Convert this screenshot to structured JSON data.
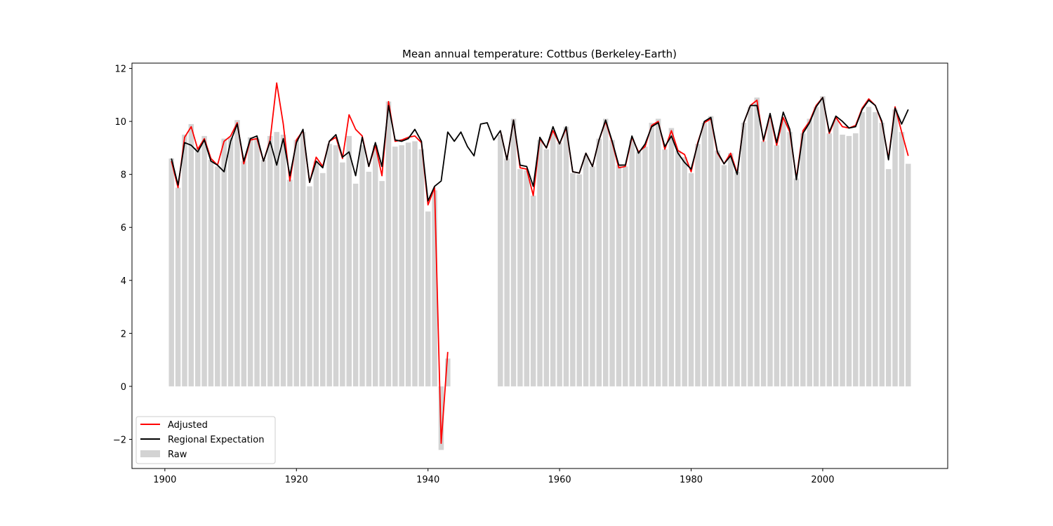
{
  "chart_data": {
    "type": "bar",
    "title": "Mean annual temperature: Cottbus (Berkeley-Earth)",
    "xlabel": "",
    "ylabel": "",
    "xlim": [
      1895,
      2019
    ],
    "ylim": [
      -3.1,
      12.2
    ],
    "xticks": [
      1900,
      1920,
      1940,
      1960,
      1980,
      2000
    ],
    "yticks": [
      -2,
      0,
      2,
      4,
      6,
      8,
      10,
      12
    ],
    "legend": {
      "position": "lower-left",
      "entries": [
        {
          "label": "Adjusted",
          "kind": "line",
          "color": "#ff0000"
        },
        {
          "label": "Regional Expectation",
          "kind": "line",
          "color": "#000000"
        },
        {
          "label": "Raw",
          "kind": "bar",
          "color": "#d3d3d3"
        }
      ]
    },
    "series": [
      {
        "name": "Raw",
        "kind": "bar",
        "color": "#d3d3d3",
        "x": [
          1901,
          1902,
          1903,
          1904,
          1905,
          1906,
          1907,
          1908,
          1909,
          1910,
          1911,
          1912,
          1913,
          1914,
          1915,
          1916,
          1917,
          1918,
          1919,
          1920,
          1921,
          1922,
          1923,
          1924,
          1925,
          1926,
          1927,
          1928,
          1929,
          1930,
          1931,
          1932,
          1933,
          1934,
          1935,
          1936,
          1937,
          1938,
          1939,
          1940,
          1941,
          1942,
          1943,
          1951,
          1952,
          1953,
          1954,
          1955,
          1956,
          1957,
          1958,
          1959,
          1960,
          1961,
          1962,
          1963,
          1964,
          1965,
          1966,
          1967,
          1968,
          1969,
          1970,
          1971,
          1972,
          1973,
          1974,
          1975,
          1976,
          1977,
          1978,
          1979,
          1980,
          1981,
          1982,
          1983,
          1984,
          1985,
          1986,
          1987,
          1988,
          1989,
          1990,
          1991,
          1992,
          1993,
          1994,
          1995,
          1996,
          1997,
          1998,
          1999,
          2000,
          2001,
          2002,
          2003,
          2004,
          2005,
          2006,
          2007,
          2008,
          2009,
          2010,
          2011,
          2012,
          2013
        ],
        "values": [
          8.6,
          7.5,
          9.5,
          9.9,
          9.0,
          9.45,
          8.55,
          8.3,
          9.35,
          9.4,
          10.05,
          8.5,
          9.4,
          9.35,
          8.55,
          9.45,
          9.6,
          9.5,
          7.8,
          9.3,
          9.6,
          7.55,
          8.5,
          8.05,
          9.15,
          9.1,
          8.45,
          9.45,
          7.65,
          9.1,
          8.1,
          9.1,
          7.75,
          10.75,
          9.05,
          9.1,
          9.2,
          9.25,
          8.95,
          6.6,
          7.4,
          -2.4,
          1.05,
          9.5,
          8.6,
          10.1,
          8.2,
          8.15,
          7.2,
          9.3,
          8.95,
          9.55,
          9.2,
          9.8,
          8.05,
          8.0,
          8.7,
          8.3,
          9.35,
          10.1,
          9.3,
          8.35,
          8.3,
          9.3,
          8.85,
          9.05,
          9.95,
          10.1,
          8.95,
          9.75,
          8.9,
          8.65,
          8.05,
          9.15,
          9.95,
          10.2,
          8.9,
          8.35,
          8.8,
          8.1,
          9.95,
          10.55,
          10.9,
          9.25,
          10.05,
          9.1,
          10.05,
          9.6,
          7.85,
          9.55,
          10.1,
          10.55,
          10.95,
          9.55,
          10.05,
          9.5,
          9.45,
          9.55,
          10.35,
          10.55,
          10.35,
          9.95,
          8.2,
          10.45,
          9.6,
          8.4
        ]
      },
      {
        "name": "Adjusted",
        "kind": "line",
        "color": "#ff0000",
        "segments": [
          {
            "x": [
              1901,
              1902,
              1903,
              1904,
              1905,
              1906,
              1907,
              1908,
              1909,
              1910,
              1911,
              1912,
              1913,
              1914,
              1915,
              1916,
              1917,
              1918,
              1919,
              1920,
              1921,
              1922,
              1923,
              1924,
              1925,
              1926,
              1927,
              1928,
              1929,
              1930,
              1931,
              1932,
              1933,
              1934,
              1935,
              1936,
              1937,
              1938,
              1939,
              1940,
              1941,
              1942,
              1943
            ],
            "values": [
              8.5,
              7.5,
              9.4,
              9.8,
              8.95,
              9.35,
              8.6,
              8.35,
              9.25,
              9.45,
              9.95,
              8.4,
              9.3,
              9.35,
              8.5,
              9.3,
              11.45,
              9.9,
              7.75,
              9.3,
              9.65,
              7.7,
              8.65,
              8.3,
              9.25,
              9.4,
              8.6,
              10.25,
              9.7,
              9.45,
              8.3,
              9.1,
              7.95,
              10.75,
              9.25,
              9.3,
              9.4,
              9.45,
              9.2,
              6.85,
              7.5,
              -2.15,
              1.3
            ]
          },
          {
            "x": [
              1951,
              1952,
              1953,
              1954,
              1955,
              1956,
              1957,
              1958,
              1959,
              1960,
              1961,
              1962,
              1963,
              1964,
              1965,
              1966,
              1967,
              1968,
              1969,
              1970,
              1971,
              1972,
              1973,
              1974,
              1975,
              1976,
              1977,
              1978,
              1979,
              1980,
              1981,
              1982,
              1983,
              1984,
              1985,
              1986,
              1987,
              1988,
              1989,
              1990,
              1991,
              1992,
              1993,
              1994,
              1995,
              1996,
              1997,
              1998,
              1999,
              2000,
              2001,
              2002,
              2003,
              2004,
              2005,
              2006,
              2007,
              2008,
              2009,
              2010,
              2011,
              2012,
              2013
            ],
            "values": [
              9.65,
              8.55,
              10.05,
              8.25,
              8.2,
              7.2,
              9.35,
              9.0,
              9.65,
              9.15,
              9.75,
              8.1,
              8.05,
              8.8,
              8.3,
              9.3,
              10.0,
              9.2,
              8.25,
              8.3,
              9.4,
              8.85,
              9.05,
              9.85,
              10.0,
              8.95,
              9.65,
              8.9,
              8.75,
              8.1,
              9.2,
              9.95,
              10.1,
              8.8,
              8.4,
              8.8,
              8.05,
              9.95,
              10.6,
              10.8,
              9.25,
              10.25,
              9.1,
              10.15,
              9.6,
              7.85,
              9.65,
              10.0,
              10.6,
              10.9,
              9.55,
              10.15,
              9.8,
              9.75,
              9.85,
              10.5,
              10.85,
              10.6,
              9.95,
              8.6,
              10.55,
              9.6,
              8.7
            ]
          }
        ]
      },
      {
        "name": "Regional Expectation",
        "kind": "line",
        "color": "#000000",
        "segments": [
          {
            "x": [
              1901,
              1902,
              1903,
              1904,
              1905,
              1906,
              1907,
              1908,
              1909,
              1910,
              1911,
              1912,
              1913,
              1914,
              1915,
              1916,
              1917,
              1918,
              1919,
              1920,
              1921,
              1922,
              1923,
              1924,
              1925,
              1926,
              1927,
              1928,
              1929,
              1930,
              1931,
              1932,
              1933,
              1934,
              1935,
              1936,
              1937,
              1938,
              1939,
              1940,
              1941,
              1942,
              1943,
              1944,
              1945,
              1946,
              1947,
              1948,
              1949,
              1950,
              1951,
              1952,
              1953,
              1954,
              1955,
              1956,
              1957,
              1958,
              1959,
              1960,
              1961,
              1962,
              1963,
              1964,
              1965,
              1966,
              1967,
              1968,
              1969,
              1970,
              1971,
              1972,
              1973,
              1974,
              1975,
              1976,
              1977,
              1978,
              1979,
              1980,
              1981,
              1982,
              1983,
              1984,
              1985,
              1986,
              1987,
              1988,
              1989,
              1990,
              1991,
              1992,
              1993,
              1994,
              1995,
              1996,
              1997,
              1998,
              1999,
              2000,
              2001,
              2002,
              2003,
              2004,
              2005,
              2006,
              2007,
              2008,
              2009,
              2010,
              2011,
              2012,
              2013
            ],
            "values": [
              8.6,
              7.6,
              9.2,
              9.1,
              8.85,
              9.3,
              8.5,
              8.35,
              8.1,
              9.25,
              9.9,
              8.5,
              9.35,
              9.45,
              8.5,
              9.25,
              8.35,
              9.35,
              7.95,
              9.2,
              9.7,
              7.7,
              8.5,
              8.25,
              9.25,
              9.5,
              8.65,
              8.85,
              7.95,
              9.4,
              8.3,
              9.2,
              8.3,
              10.6,
              9.3,
              9.25,
              9.35,
              9.7,
              9.25,
              7.0,
              7.55,
              7.75,
              9.6,
              9.25,
              9.6,
              9.05,
              8.7,
              9.9,
              9.95,
              9.3,
              9.65,
              8.55,
              10.05,
              8.35,
              8.3,
              7.55,
              9.4,
              9.0,
              9.8,
              9.15,
              9.8,
              8.1,
              8.05,
              8.8,
              8.3,
              9.3,
              10.05,
              9.25,
              8.35,
              8.35,
              9.45,
              8.8,
              9.15,
              9.8,
              9.95,
              9.05,
              9.45,
              8.8,
              8.45,
              8.2,
              9.15,
              10.0,
              10.15,
              8.85,
              8.4,
              8.7,
              8.0,
              9.95,
              10.6,
              10.6,
              9.3,
              10.3,
              9.2,
              10.35,
              9.7,
              7.8,
              9.55,
              9.95,
              10.55,
              10.9,
              9.6,
              10.2,
              10.0,
              9.75,
              9.8,
              10.45,
              10.8,
              10.6,
              10.0,
              8.55,
              10.5,
              9.9,
              10.45
            ]
          }
        ]
      }
    ]
  }
}
